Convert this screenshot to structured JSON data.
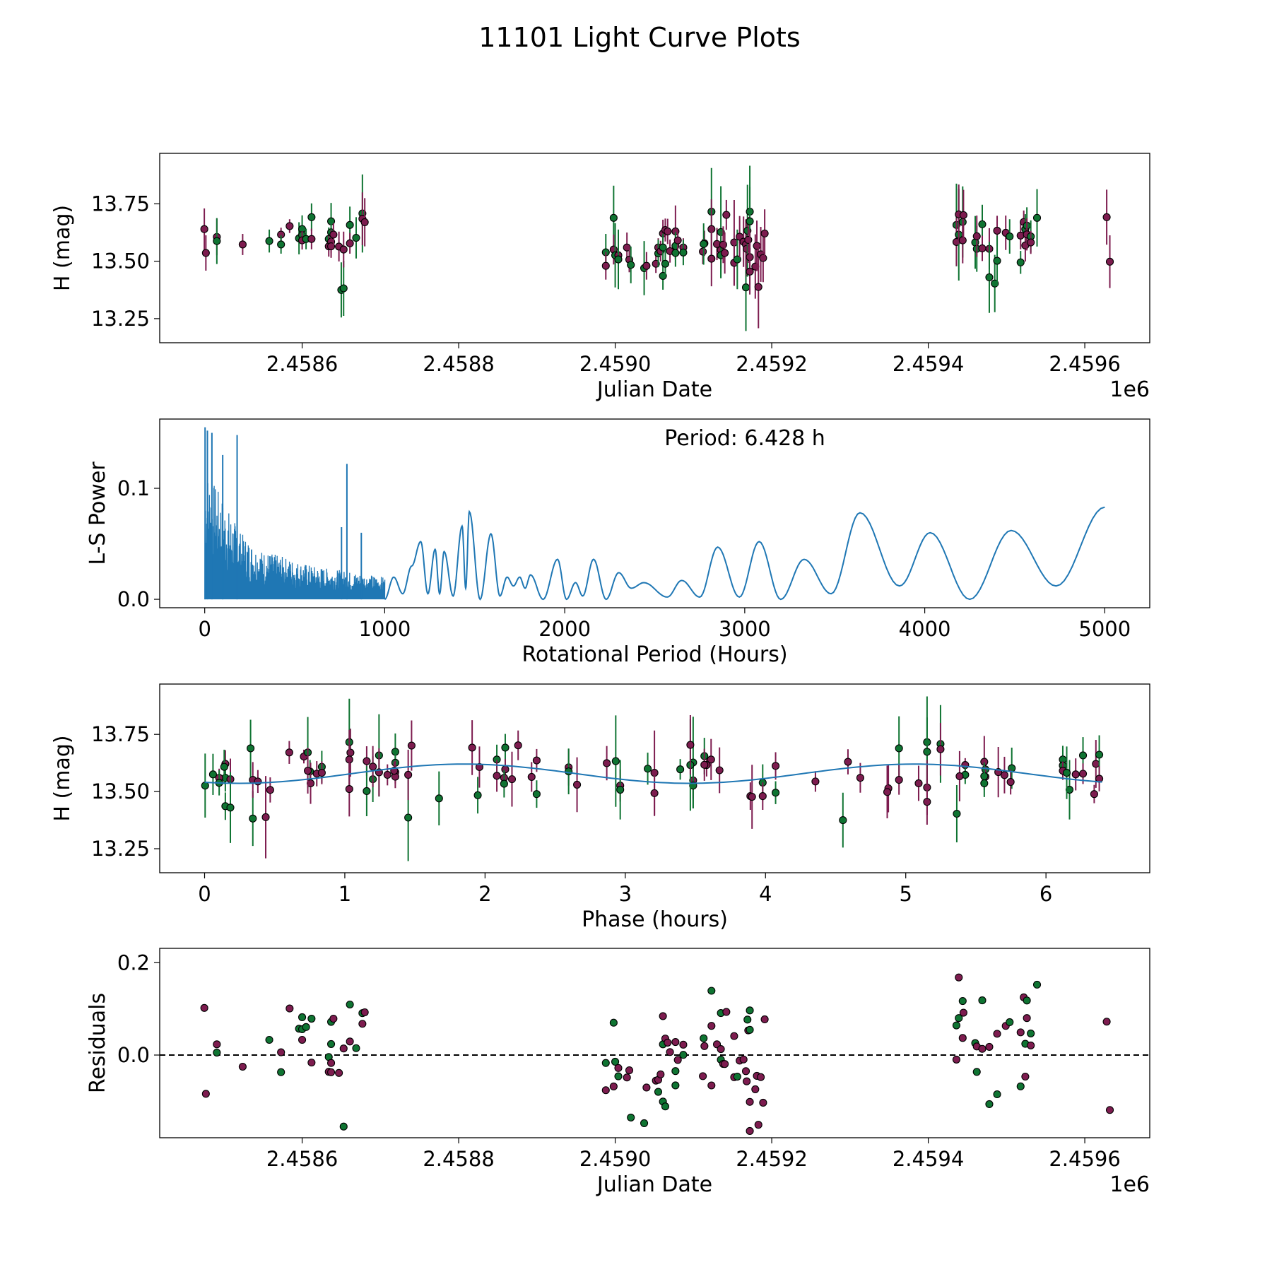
{
  "title": "11101 Light Curve Plots",
  "colors": {
    "band_a": "#7d1c4f",
    "band_b": "#0f7432",
    "periodogram": "#1f77b4",
    "model": "#1f77b4"
  },
  "chart_data": [
    {
      "id": "lightcurve",
      "type": "scatter",
      "xlabel": "Julian Date",
      "ylabel": "H (mag)",
      "x_offset_label": "1e6",
      "xlim": [
        2458418,
        2459683
      ],
      "ylim": [
        13.145,
        13.97
      ],
      "xticks": [
        2458600,
        2458800,
        2459000,
        2459200,
        2459400,
        2459600
      ],
      "xtick_labels": [
        "2.4586",
        "2.4588",
        "2.4590",
        "2.4592",
        "2.4594",
        "2.4596"
      ],
      "yticks": [
        13.25,
        13.5,
        13.75
      ],
      "ytick_labels": [
        "13.25",
        "13.50",
        "13.75"
      ],
      "fields": [
        "jd",
        "mag",
        "err",
        "band"
      ],
      "points": [
        [
          2458475,
          13.64,
          0.09,
          "a"
        ],
        [
          2458477,
          13.536,
          0.077,
          "a"
        ],
        [
          2458491,
          13.606,
          0.08,
          "a"
        ],
        [
          2458491,
          13.588,
          0.1,
          "b"
        ],
        [
          2458524,
          13.573,
          0.046,
          "a"
        ],
        [
          2458558,
          13.588,
          0.05,
          "b"
        ],
        [
          2458573,
          13.616,
          0.03,
          "a"
        ],
        [
          2458573,
          13.573,
          0.04,
          "b"
        ],
        [
          2458584,
          13.653,
          0.03,
          "a"
        ],
        [
          2458596,
          13.6,
          0.07,
          "b"
        ],
        [
          2458600,
          13.64,
          0.06,
          "b"
        ],
        [
          2458600,
          13.614,
          0.04,
          "b"
        ],
        [
          2458600,
          13.591,
          0.04,
          "a"
        ],
        [
          2458605,
          13.597,
          0.045,
          "b"
        ],
        [
          2458612,
          13.692,
          0.06,
          "b"
        ],
        [
          2458612,
          13.597,
          0.045,
          "a"
        ],
        [
          2458634,
          13.597,
          0.05,
          "b"
        ],
        [
          2458634,
          13.565,
          0.045,
          "a"
        ],
        [
          2458637,
          13.674,
          0.08,
          "b"
        ],
        [
          2458637,
          13.626,
          0.05,
          "b"
        ],
        [
          2458637,
          13.585,
          0.05,
          "a"
        ],
        [
          2458637,
          13.565,
          0.05,
          "a"
        ],
        [
          2458640,
          13.616,
          0.05,
          "a"
        ],
        [
          2458647,
          13.564,
          0.065,
          "a"
        ],
        [
          2458650,
          13.375,
          0.12,
          "b"
        ],
        [
          2458653,
          13.382,
          0.12,
          "b"
        ],
        [
          2458653,
          13.551,
          0.078,
          "a"
        ],
        [
          2458661,
          13.658,
          0.08,
          "b"
        ],
        [
          2458661,
          13.578,
          0.045,
          "a"
        ],
        [
          2458669,
          13.602,
          0.09,
          "b"
        ],
        [
          2458677,
          13.708,
          0.17,
          "b"
        ],
        [
          2458677,
          13.685,
          0.115,
          "a"
        ],
        [
          2458680,
          13.67,
          0.105,
          "a"
        ],
        [
          2458988,
          13.539,
          0.08,
          "b"
        ],
        [
          2458988,
          13.48,
          0.06,
          "a"
        ],
        [
          2458998,
          13.689,
          0.14,
          "b"
        ],
        [
          2458998,
          13.551,
          0.065,
          "a"
        ],
        [
          2459000,
          13.526,
          0.14,
          "b"
        ],
        [
          2459004,
          13.526,
          0.07,
          "a"
        ],
        [
          2459004,
          13.508,
          0.13,
          "b"
        ],
        [
          2459015,
          13.56,
          0.065,
          "a"
        ],
        [
          2459018,
          13.507,
          0.055,
          "a"
        ],
        [
          2459020,
          13.484,
          0.08,
          "b"
        ],
        [
          2459037,
          13.47,
          0.118,
          "b"
        ],
        [
          2459040,
          13.48,
          0.06,
          "a"
        ],
        [
          2459052,
          13.489,
          0.04,
          "a"
        ],
        [
          2459055,
          13.56,
          0.04,
          "a"
        ],
        [
          2459055,
          13.534,
          0.06,
          "b"
        ],
        [
          2459058,
          13.544,
          0.045,
          "a"
        ],
        [
          2459061,
          13.621,
          0.06,
          "a"
        ],
        [
          2459061,
          13.56,
          0.06,
          "b"
        ],
        [
          2459061,
          13.436,
          0.06,
          "b"
        ],
        [
          2459064,
          13.636,
          0.05,
          "a"
        ],
        [
          2459064,
          13.489,
          0.06,
          "b"
        ],
        [
          2459067,
          13.63,
          0.055,
          "a"
        ],
        [
          2459070,
          13.544,
          0.05,
          "a"
        ],
        [
          2459077,
          13.63,
          0.113,
          "a"
        ],
        [
          2459077,
          13.567,
          0.06,
          "b"
        ],
        [
          2459077,
          13.536,
          0.06,
          "b"
        ],
        [
          2459080,
          13.591,
          0.04,
          "a"
        ],
        [
          2459087,
          13.56,
          0.04,
          "a"
        ],
        [
          2459087,
          13.538,
          0.055,
          "b"
        ],
        [
          2459112,
          13.542,
          0.055,
          "a"
        ],
        [
          2459114,
          13.578,
          0.055,
          "a"
        ],
        [
          2459113,
          13.575,
          0.09,
          "b"
        ],
        [
          2459123,
          13.716,
          0.19,
          "b"
        ],
        [
          2459123,
          13.64,
          0.13,
          "a"
        ],
        [
          2459123,
          13.511,
          0.12,
          "a"
        ],
        [
          2459130,
          13.575,
          0.07,
          "a"
        ],
        [
          2459135,
          13.627,
          0.2,
          "b"
        ],
        [
          2459135,
          13.549,
          0.08,
          "a"
        ],
        [
          2459135,
          13.526,
          0.1,
          "b"
        ],
        [
          2459138,
          13.572,
          0.08,
          "a"
        ],
        [
          2459140,
          13.536,
          0.09,
          "a"
        ],
        [
          2459142,
          13.702,
          0.065,
          "a"
        ],
        [
          2459152,
          13.582,
          0.185,
          "a"
        ],
        [
          2459152,
          13.493,
          0.1,
          "a"
        ],
        [
          2459156,
          13.508,
          0.13,
          "b"
        ],
        [
          2459159,
          13.607,
          0.09,
          "a"
        ],
        [
          2459164,
          13.585,
          0.11,
          "a"
        ],
        [
          2459167,
          13.386,
          0.19,
          "b"
        ],
        [
          2459167,
          13.573,
          0.11,
          "a"
        ],
        [
          2459168,
          13.554,
          0.12,
          "a"
        ],
        [
          2459169,
          13.633,
          0.2,
          "b"
        ],
        [
          2459170,
          13.593,
          0.1,
          "a"
        ],
        [
          2459172,
          13.716,
          0.2,
          "b"
        ],
        [
          2459172,
          13.674,
          0.15,
          "b"
        ],
        [
          2459172,
          13.518,
          0.12,
          "a"
        ],
        [
          2459172,
          13.455,
          0.1,
          "a"
        ],
        [
          2459179,
          13.477,
          0.14,
          "a"
        ],
        [
          2459181,
          13.567,
          0.11,
          "a"
        ],
        [
          2459183,
          13.388,
          0.18,
          "a"
        ],
        [
          2459186,
          13.53,
          0.12,
          "a"
        ],
        [
          2459189,
          13.514,
          0.105,
          "a"
        ],
        [
          2459191,
          13.621,
          0.105,
          "a"
        ],
        [
          2459436,
          13.658,
          0.18,
          "b"
        ],
        [
          2459436,
          13.584,
          0.105,
          "a"
        ],
        [
          2459439,
          13.616,
          0.2,
          "b"
        ],
        [
          2459439,
          13.704,
          0.13,
          "a"
        ],
        [
          2459444,
          13.671,
          0.155,
          "b"
        ],
        [
          2459444,
          13.591,
          0.1,
          "a"
        ],
        [
          2459445,
          13.701,
          0.11,
          "a"
        ],
        [
          2459460,
          13.582,
          0.115,
          "b"
        ],
        [
          2459462,
          13.554,
          0.1,
          "b"
        ],
        [
          2459462,
          13.609,
          0.09,
          "a"
        ],
        [
          2459469,
          13.661,
          0.085,
          "b"
        ],
        [
          2459469,
          13.556,
          0.055,
          "a"
        ],
        [
          2459478,
          13.554,
          0.09,
          "a"
        ],
        [
          2459478,
          13.43,
          0.155,
          "b"
        ],
        [
          2459485,
          13.403,
          0.125,
          "b"
        ],
        [
          2459488,
          13.633,
          0.065,
          "a"
        ],
        [
          2459488,
          13.502,
          0.11,
          "b"
        ],
        [
          2459499,
          13.624,
          0.075,
          "a"
        ],
        [
          2459504,
          13.608,
          0.075,
          "b"
        ],
        [
          2459518,
          13.612,
          0.06,
          "a"
        ],
        [
          2459518,
          13.495,
          0.05,
          "b"
        ],
        [
          2459522,
          13.671,
          0.05,
          "a"
        ],
        [
          2459524,
          13.64,
          0.065,
          "b"
        ],
        [
          2459524,
          13.569,
          0.07,
          "a"
        ],
        [
          2459526,
          13.655,
          0.08,
          "b"
        ],
        [
          2459526,
          13.617,
          0.07,
          "a"
        ],
        [
          2459531,
          13.608,
          0.07,
          "b"
        ],
        [
          2459531,
          13.582,
          0.05,
          "a"
        ],
        [
          2459539,
          13.689,
          0.125,
          "b"
        ],
        [
          2459628,
          13.692,
          0.12,
          "a"
        ],
        [
          2459632,
          13.498,
          0.115,
          "a"
        ]
      ]
    },
    {
      "id": "periodogram",
      "type": "line",
      "xlabel": "Rotational Period (Hours)",
      "ylabel": "L-S Power",
      "annotation": "Period: 6.428 h",
      "xlim": [
        -250,
        5250
      ],
      "ylim": [
        -0.0076,
        0.1624
      ],
      "xticks": [
        0,
        1000,
        2000,
        3000,
        4000,
        5000
      ],
      "xtick_labels": [
        "0",
        "1000",
        "2000",
        "3000",
        "4000",
        "5000"
      ],
      "yticks": [
        0.0,
        0.1
      ],
      "ytick_labels": [
        "0.0",
        "0.1"
      ],
      "spikes": [
        [
          2,
          0.155
        ],
        [
          15,
          0.152
        ],
        [
          40,
          0.15
        ],
        [
          100,
          0.13
        ],
        [
          180,
          0.148
        ],
        [
          760,
          0.065
        ],
        [
          790,
          0.122
        ],
        [
          870,
          0.06
        ]
      ],
      "envelope_below_1000": [
        [
          0,
          0.12
        ],
        [
          200,
          0.06
        ],
        [
          300,
          0.045
        ],
        [
          600,
          0.03
        ],
        [
          1000,
          0.02
        ]
      ],
      "curve_above_1000": [
        [
          1000,
          0.0
        ],
        [
          1050,
          0.02
        ],
        [
          1100,
          0.005
        ],
        [
          1150,
          0.03
        ],
        [
          1200,
          0.052
        ],
        [
          1240,
          0.005
        ],
        [
          1280,
          0.045
        ],
        [
          1305,
          0.005
        ],
        [
          1330,
          0.043
        ],
        [
          1380,
          0.003
        ],
        [
          1430,
          0.066
        ],
        [
          1450,
          0.01
        ],
        [
          1470,
          0.079
        ],
        [
          1530,
          0.0
        ],
        [
          1590,
          0.059
        ],
        [
          1640,
          0.003
        ],
        [
          1680,
          0.02
        ],
        [
          1715,
          0.012
        ],
        [
          1750,
          0.02
        ],
        [
          1780,
          0.01
        ],
        [
          1810,
          0.022
        ],
        [
          1880,
          0.0
        ],
        [
          1960,
          0.036
        ],
        [
          2010,
          0.0
        ],
        [
          2060,
          0.015
        ],
        [
          2100,
          0.003
        ],
        [
          2160,
          0.036
        ],
        [
          2230,
          0.0
        ],
        [
          2300,
          0.024
        ],
        [
          2370,
          0.01
        ],
        [
          2440,
          0.015
        ],
        [
          2570,
          0.002
        ],
        [
          2650,
          0.017
        ],
        [
          2750,
          0.002
        ],
        [
          2850,
          0.047
        ],
        [
          2970,
          0.002
        ],
        [
          3080,
          0.052
        ],
        [
          3200,
          0.0
        ],
        [
          3330,
          0.036
        ],
        [
          3480,
          0.005
        ],
        [
          3640,
          0.078
        ],
        [
          3860,
          0.012
        ],
        [
          4030,
          0.06
        ],
        [
          4250,
          0.0
        ],
        [
          4480,
          0.062
        ],
        [
          4730,
          0.012
        ],
        [
          5000,
          0.083
        ]
      ]
    },
    {
      "id": "phased",
      "type": "scatter",
      "xlabel": "Phase (hours)",
      "ylabel": "H (mag)",
      "period_hours": 6.428,
      "xlim": [
        -0.32,
        6.74
      ],
      "ylim": [
        13.145,
        13.97
      ],
      "xticks": [
        0,
        1,
        2,
        3,
        4,
        5,
        6
      ],
      "xtick_labels": [
        "0",
        "1",
        "2",
        "3",
        "4",
        "5",
        "6"
      ],
      "yticks": [
        13.25,
        13.5,
        13.75
      ],
      "ytick_labels": [
        "13.25",
        "13.50",
        "13.75"
      ],
      "model": {
        "mean": 13.578,
        "amplitude": 0.042,
        "peak_phase": 1.85,
        "harmonic": 2
      }
    },
    {
      "id": "residuals",
      "type": "scatter",
      "xlabel": "Julian Date",
      "ylabel": "Residuals",
      "x_offset_label": "1e6",
      "xlim": [
        2458418,
        2459683
      ],
      "ylim": [
        -0.179,
        0.231
      ],
      "xticks": [
        2458600,
        2458800,
        2459000,
        2459200,
        2459400,
        2459600
      ],
      "xtick_labels": [
        "2.4586",
        "2.4588",
        "2.4590",
        "2.4592",
        "2.4594",
        "2.4596"
      ],
      "yticks": [
        0.0,
        0.2
      ],
      "ytick_labels": [
        "0.0",
        "0.2"
      ],
      "reference_line": 0.0
    }
  ]
}
